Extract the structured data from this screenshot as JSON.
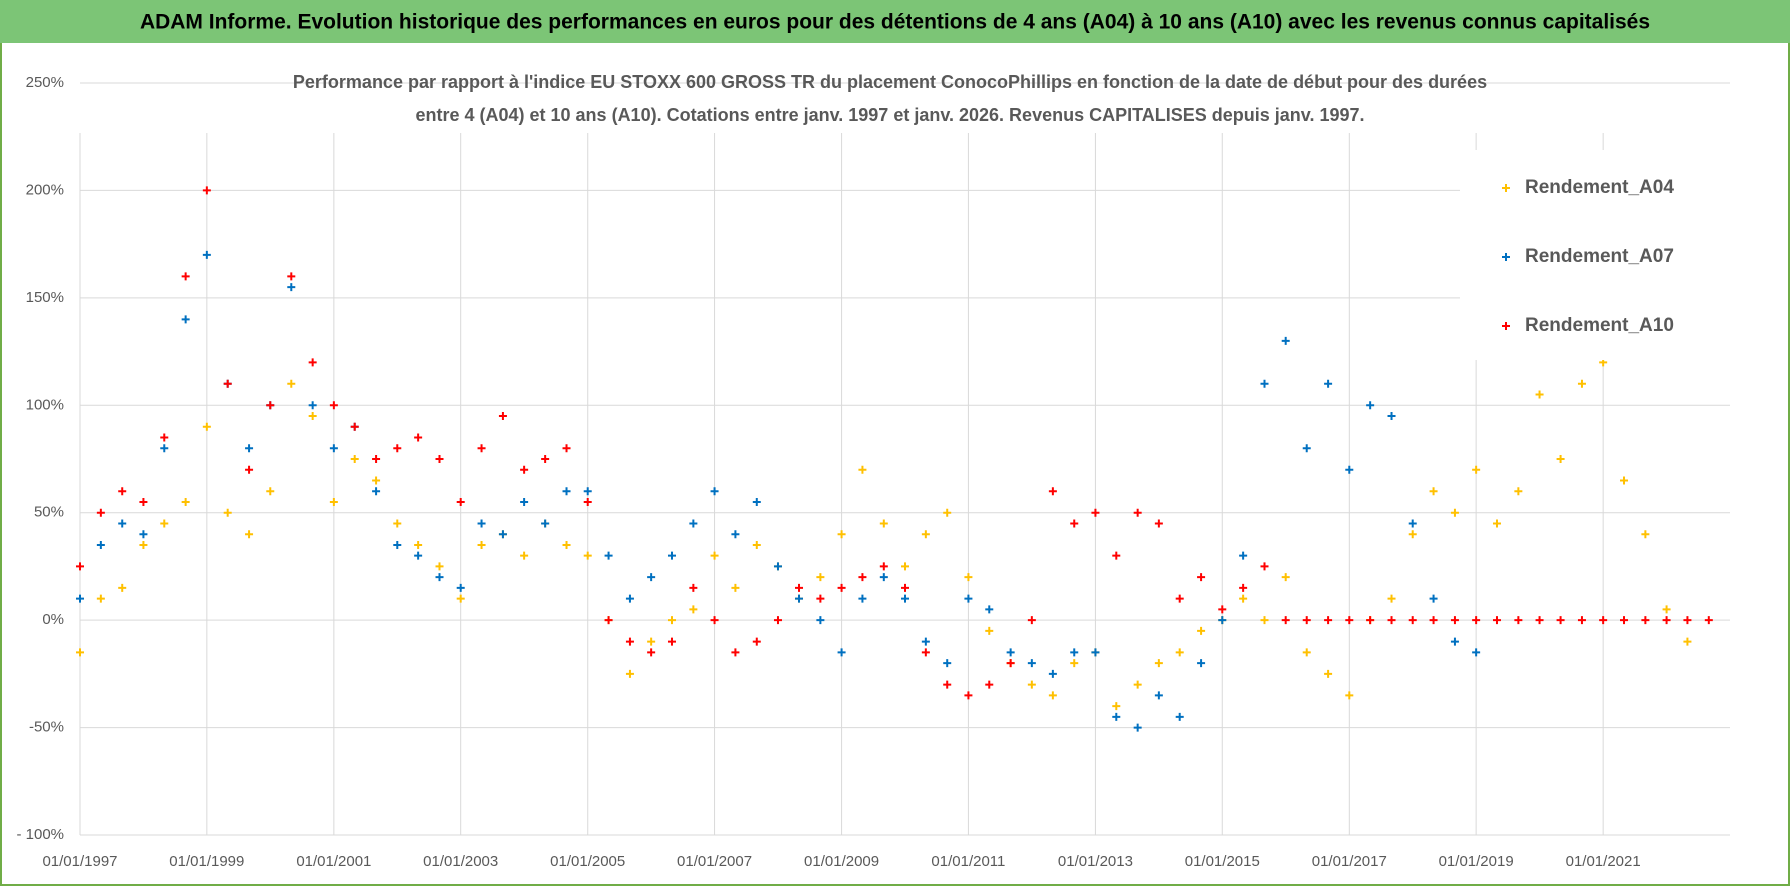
{
  "header": "ADAM Informe. Evolution historique des performances en euros pour des détentions de 4 ans (A04) à 10 ans (A10) avec les revenus connus capitalisés",
  "chart_data": {
    "type": "scatter",
    "title": [
      "Performance par rapport à l'indice EU STOXX 600 GROSS TR  du placement ConocoPhillips en fonction de la date de début pour des durées",
      "entre 4 (A04) et 10 ans (A10).  Cotations entre janv. 1997 et janv. 2026. Revenus CAPITALISES depuis janv. 1997."
    ],
    "x": [
      "1997-01-01",
      "1997-05-01",
      "1997-09-01",
      "1998-01-01",
      "1998-05-01",
      "1998-09-01",
      "1999-01-01",
      "1999-05-01",
      "1999-09-01",
      "2000-01-01",
      "2000-05-01",
      "2000-09-01",
      "2001-01-01",
      "2001-05-01",
      "2001-09-01",
      "2002-01-01",
      "2002-05-01",
      "2002-09-01",
      "2003-01-01",
      "2003-05-01",
      "2003-09-01",
      "2004-01-01",
      "2004-05-01",
      "2004-09-01",
      "2005-01-01",
      "2005-05-01",
      "2005-09-01",
      "2006-01-01",
      "2006-05-01",
      "2006-09-01",
      "2007-01-01",
      "2007-05-01",
      "2007-09-01",
      "2008-01-01",
      "2008-05-01",
      "2008-09-01",
      "2009-01-01",
      "2009-05-01",
      "2009-09-01",
      "2010-01-01",
      "2010-05-01",
      "2010-09-01",
      "2011-01-01",
      "2011-05-01",
      "2011-09-01",
      "2012-01-01",
      "2012-05-01",
      "2012-09-01",
      "2013-01-01",
      "2013-05-01",
      "2013-09-01",
      "2014-01-01",
      "2014-05-01",
      "2014-09-01",
      "2015-01-01",
      "2015-05-01",
      "2015-09-01",
      "2016-01-01",
      "2016-05-01",
      "2016-09-01",
      "2017-01-01",
      "2017-05-01",
      "2017-09-01",
      "2018-01-01",
      "2018-05-01",
      "2018-09-01",
      "2019-01-01",
      "2019-05-01",
      "2019-09-01",
      "2020-01-01",
      "2020-05-01",
      "2020-09-01",
      "2021-01-01",
      "2021-05-01",
      "2021-09-01",
      "2022-01-01",
      "2022-05-01",
      "2022-09-01"
    ],
    "series": [
      {
        "name": "Rendement_A04",
        "color": "#ffc000",
        "values": [
          -15,
          10,
          15,
          35,
          45,
          55,
          90,
          50,
          40,
          60,
          110,
          95,
          55,
          75,
          65,
          45,
          35,
          25,
          10,
          35,
          40,
          30,
          45,
          35,
          30,
          0,
          -25,
          -10,
          0,
          5,
          30,
          15,
          35,
          25,
          10,
          20,
          40,
          70,
          45,
          25,
          40,
          50,
          20,
          -5,
          -20,
          -30,
          -35,
          -20,
          -15,
          -40,
          -30,
          -20,
          -15,
          -5,
          0,
          10,
          0,
          20,
          -15,
          -25,
          -35,
          0,
          10,
          40,
          60,
          50,
          70,
          45,
          60,
          105,
          75,
          110,
          120,
          65,
          40,
          5,
          -10,
          null
        ]
      },
      {
        "name": "Rendement_A07",
        "color": "#0070c0",
        "values": [
          10,
          35,
          45,
          40,
          80,
          140,
          170,
          110,
          80,
          100,
          155,
          100,
          80,
          90,
          60,
          35,
          30,
          20,
          15,
          45,
          40,
          55,
          45,
          60,
          60,
          30,
          10,
          20,
          30,
          45,
          60,
          40,
          55,
          25,
          10,
          0,
          -15,
          10,
          20,
          10,
          -10,
          -20,
          10,
          5,
          -15,
          -20,
          -25,
          -15,
          -15,
          -45,
          -50,
          -35,
          -45,
          -20,
          0,
          30,
          110,
          130,
          80,
          110,
          70,
          100,
          95,
          45,
          10,
          -10,
          -15,
          null,
          null,
          null,
          null,
          null,
          null,
          null,
          null,
          null,
          null,
          null
        ]
      },
      {
        "name": "Rendement_A10",
        "color": "#ff0000",
        "values": [
          25,
          50,
          60,
          55,
          85,
          160,
          200,
          110,
          70,
          100,
          160,
          120,
          100,
          90,
          75,
          80,
          85,
          75,
          55,
          80,
          95,
          70,
          75,
          80,
          55,
          0,
          -10,
          -15,
          -10,
          15,
          0,
          -15,
          -10,
          0,
          15,
          10,
          15,
          20,
          25,
          15,
          -15,
          -30,
          -35,
          -30,
          -20,
          0,
          60,
          45,
          50,
          30,
          50,
          45,
          10,
          20,
          5,
          15,
          25,
          0,
          0,
          0,
          0,
          0,
          0,
          0,
          0,
          0,
          0,
          0,
          0,
          0,
          0,
          0,
          0,
          0,
          0,
          0,
          0,
          0
        ]
      }
    ],
    "xlim": [
      "1997-01-01",
      "2023-01-01"
    ],
    "xticks": [
      {
        "value": "1997-01-01",
        "label": "01/01/1997"
      },
      {
        "value": "1999-01-01",
        "label": "01/01/1999"
      },
      {
        "value": "2001-01-01",
        "label": "01/01/2001"
      },
      {
        "value": "2003-01-01",
        "label": "01/01/2003"
      },
      {
        "value": "2005-01-01",
        "label": "01/01/2005"
      },
      {
        "value": "2007-01-01",
        "label": "01/01/2007"
      },
      {
        "value": "2009-01-01",
        "label": "01/01/2009"
      },
      {
        "value": "2011-01-01",
        "label": "01/01/2011"
      },
      {
        "value": "2013-01-01",
        "label": "01/01/2013"
      },
      {
        "value": "2015-01-01",
        "label": "01/01/2015"
      },
      {
        "value": "2017-01-01",
        "label": "01/01/2017"
      },
      {
        "value": "2019-01-01",
        "label": "01/01/2019"
      },
      {
        "value": "2021-01-01",
        "label": "01/01/2021"
      }
    ],
    "ylim": [
      -100,
      250
    ],
    "yticks": [
      {
        "value": -100,
        "label": "- 100%"
      },
      {
        "value": -50,
        "label": "-50%"
      },
      {
        "value": 0,
        "label": "0%"
      },
      {
        "value": 50,
        "label": "50%"
      },
      {
        "value": 100,
        "label": "100%"
      },
      {
        "value": 150,
        "label": "150%"
      },
      {
        "value": 200,
        "label": "200%"
      },
      {
        "value": 250,
        "label": "250%"
      }
    ],
    "grid": true,
    "legend": "right"
  }
}
